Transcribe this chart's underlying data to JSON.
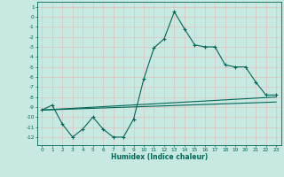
{
  "xlabel": "Humidex (Indice chaleur)",
  "xlim": [
    -0.5,
    23.5
  ],
  "ylim": [
    -12.8,
    1.5
  ],
  "yticks": [
    1,
    0,
    -1,
    -2,
    -3,
    -4,
    -5,
    -6,
    -7,
    -8,
    -9,
    -10,
    -11,
    -12
  ],
  "xticks": [
    0,
    1,
    2,
    3,
    4,
    5,
    6,
    7,
    8,
    9,
    10,
    11,
    12,
    13,
    14,
    15,
    16,
    17,
    18,
    19,
    20,
    21,
    22,
    23
  ],
  "bg_color": "#c8e8e2",
  "grid_color": "#e8b8b8",
  "line_color": "#006858",
  "main_x": [
    0,
    1,
    2,
    3,
    4,
    5,
    6,
    7,
    8,
    9,
    10,
    11,
    12,
    13,
    14,
    15,
    16,
    17,
    18,
    19,
    20,
    21,
    22,
    23
  ],
  "main_y": [
    -9.3,
    -8.8,
    -10.7,
    -12.0,
    -11.2,
    -10.0,
    -11.2,
    -12.0,
    -12.0,
    -10.2,
    -6.2,
    -3.1,
    -2.2,
    0.5,
    -1.2,
    -2.8,
    -3.0,
    -3.0,
    -4.8,
    -5.0,
    -5.0,
    -6.5,
    -7.8,
    -7.8
  ],
  "line1_x": [
    0,
    23
  ],
  "line1_y": [
    -9.3,
    -8.0
  ],
  "line2_x": [
    0,
    23
  ],
  "line2_y": [
    -9.3,
    -8.5
  ]
}
